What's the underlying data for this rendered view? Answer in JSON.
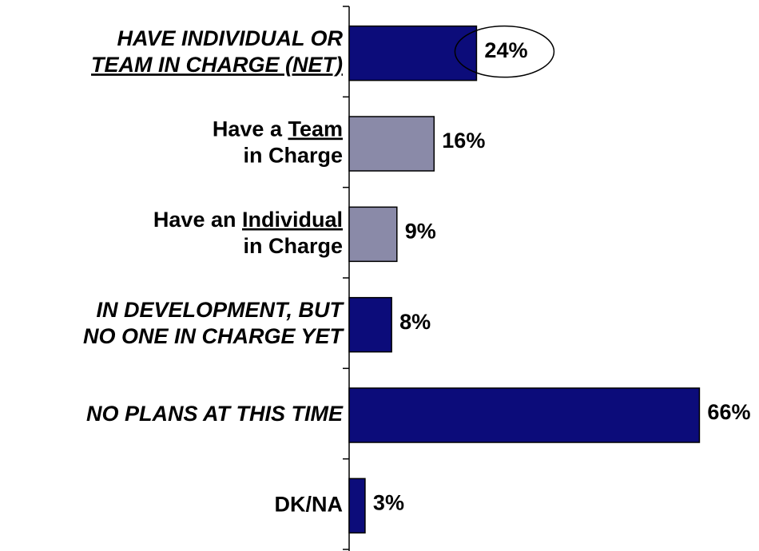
{
  "chart_data": {
    "type": "barh",
    "categories": [
      [
        [
          "HAVE INDIVIDUAL OR"
        ],
        [
          {
            "text": "TEAM IN CHARGE (NET)",
            "underline": true
          }
        ]
      ],
      [
        [
          "Have a ",
          {
            "text": "Team",
            "underline": true
          }
        ],
        [
          "in Charge"
        ]
      ],
      [
        [
          "Have an ",
          {
            "text": "Individual",
            "underline": true
          }
        ],
        [
          "in Charge"
        ]
      ],
      [
        [
          "IN DEVELOPMENT, BUT"
        ],
        [
          "NO ONE IN CHARGE YET"
        ]
      ],
      [
        [
          "NO PLANS AT THIS TIME"
        ]
      ],
      [
        [
          "DK/NA"
        ]
      ]
    ],
    "label_italic": [
      true,
      false,
      false,
      true,
      true,
      false
    ],
    "values": [
      24,
      16,
      9,
      8,
      66,
      3
    ],
    "value_labels": [
      "24%",
      "16%",
      "9%",
      "8%",
      "66%",
      "3%"
    ],
    "colors": [
      "#0c0c7a",
      "#8a8aa8",
      "#8a8aa8",
      "#0c0c7a",
      "#0c0c7a",
      "#0c0c7a"
    ],
    "highlight": 0,
    "xlim": [
      0,
      70
    ]
  }
}
